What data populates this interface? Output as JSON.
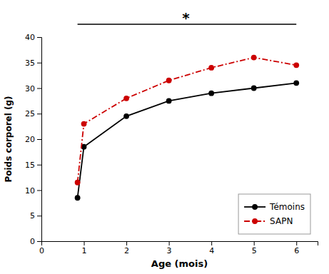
{
  "chart_data": {
    "type": "line",
    "xlabel": "Age (mois)",
    "ylabel": "Poids corporel (g)",
    "x": [
      0.85,
      1.0,
      2.0,
      3.0,
      4.0,
      5.0,
      6.0
    ],
    "series": [
      {
        "name": "Témoins",
        "color": "#000000",
        "values": [
          8.5,
          18.5,
          24.5,
          27.5,
          29.0,
          30.0,
          31.0
        ],
        "marker": "circle",
        "line_style": "solid"
      },
      {
        "name": "SAPN",
        "color": "#cc0000",
        "values": [
          11.5,
          23.0,
          28.0,
          31.5,
          34.0,
          36.0,
          34.5
        ],
        "marker": "circle",
        "line_style": "dashdot"
      }
    ],
    "xlim": [
      0,
      6.5
    ],
    "ylim": [
      0,
      40
    ],
    "xticks": [
      0,
      1,
      2,
      3,
      4,
      5,
      6
    ],
    "yticks": [
      0,
      5,
      10,
      15,
      20,
      25,
      30,
      35,
      40
    ],
    "grid": false,
    "legend": "lower right",
    "annotations": [
      {
        "text": "*",
        "x": 3.4,
        "x_start": 0.85,
        "x_end": 6.0
      }
    ]
  }
}
